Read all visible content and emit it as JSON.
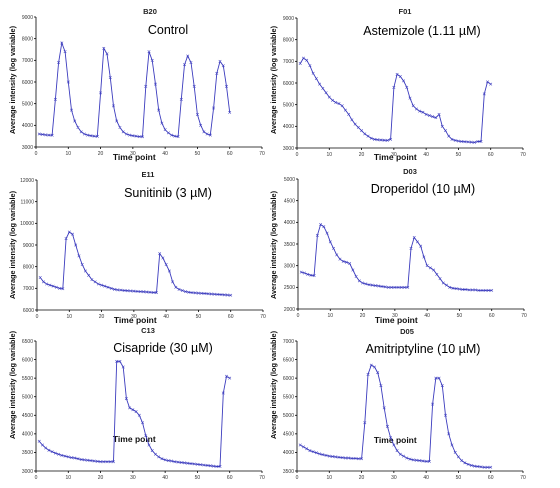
{
  "chart_data": [
    {
      "type": "line",
      "well": "B20",
      "title": "Control",
      "xlabel": "Time point",
      "ylabel": "Average intensity (log variable)",
      "xlim": [
        0,
        70
      ],
      "ylim": [
        3000,
        9000
      ],
      "xticks": [
        "0",
        "10",
        "20",
        "30",
        "40",
        "50",
        "60",
        "70"
      ],
      "yticks": [
        "3000",
        "4000",
        "5000",
        "6000",
        "7000",
        "8000",
        "9000"
      ],
      "x": [
        1,
        2,
        3,
        4,
        5,
        6,
        7,
        8,
        9,
        10,
        11,
        12,
        13,
        14,
        15,
        16,
        17,
        18,
        19,
        20,
        21,
        22,
        23,
        24,
        25,
        26,
        27,
        28,
        29,
        30,
        31,
        32,
        33,
        34,
        35,
        36,
        37,
        38,
        39,
        40,
        41,
        42,
        43,
        44,
        45,
        46,
        47,
        48,
        49,
        50,
        51,
        52,
        53,
        54,
        55,
        56,
        57,
        58,
        59,
        60
      ],
      "values": [
        3600,
        3580,
        3560,
        3550,
        3540,
        5200,
        6900,
        7800,
        7400,
        6000,
        4700,
        4200,
        3900,
        3700,
        3600,
        3550,
        3520,
        3500,
        3490,
        5500,
        7550,
        7300,
        6200,
        4900,
        4200,
        3900,
        3700,
        3600,
        3550,
        3520,
        3500,
        3480,
        3470,
        5800,
        7400,
        7000,
        5900,
        4700,
        4100,
        3800,
        3650,
        3550,
        3500,
        3480,
        5200,
        6800,
        7200,
        6900,
        5800,
        4500,
        4000,
        3700,
        3600,
        3550,
        4800,
        6400,
        6950,
        6750,
        5800,
        4600
      ]
    },
    {
      "type": "line",
      "well": "F01",
      "title": "Astemizole (1.11 µM)",
      "xlabel": "Time point",
      "ylabel": "Average intensity (log variable)",
      "xlim": [
        0,
        70
      ],
      "ylim": [
        3000,
        9000
      ],
      "xticks": [
        "0",
        "10",
        "20",
        "30",
        "40",
        "50",
        "60",
        "70"
      ],
      "yticks": [
        "3000",
        "4000",
        "5000",
        "6000",
        "7000",
        "8000",
        "9000"
      ],
      "x": [
        1,
        2,
        3,
        4,
        5,
        6,
        7,
        8,
        9,
        10,
        11,
        12,
        13,
        14,
        15,
        16,
        17,
        18,
        19,
        20,
        21,
        22,
        23,
        24,
        25,
        26,
        27,
        28,
        29,
        30,
        31,
        32,
        33,
        34,
        35,
        36,
        37,
        38,
        39,
        40,
        41,
        42,
        43,
        44,
        45,
        46,
        47,
        48,
        49,
        50,
        51,
        52,
        53,
        54,
        55,
        56,
        57,
        58,
        59,
        60
      ],
      "values": [
        6900,
        7150,
        7050,
        6800,
        6450,
        6200,
        5950,
        5750,
        5550,
        5350,
        5200,
        5100,
        5050,
        4950,
        4750,
        4550,
        4300,
        4100,
        3950,
        3800,
        3650,
        3550,
        3450,
        3400,
        3380,
        3370,
        3360,
        3350,
        3400,
        5800,
        6400,
        6300,
        6100,
        5800,
        5300,
        4950,
        4800,
        4700,
        4650,
        4550,
        4500,
        4450,
        4400,
        4550,
        4000,
        3800,
        3550,
        3400,
        3350,
        3320,
        3300,
        3290,
        3280,
        3270,
        3260,
        3300,
        3300,
        5500,
        6050,
        5950
      ]
    },
    {
      "type": "line",
      "well": "E11",
      "title": "Sunitinib (3 µM)",
      "xlabel": "Time point",
      "ylabel": "Average intensity (log variable)",
      "xlim": [
        0,
        70
      ],
      "ylim": [
        6000,
        12000
      ],
      "xticks": [
        "0",
        "10",
        "20",
        "30",
        "40",
        "50",
        "60",
        "70"
      ],
      "yticks": [
        "6000",
        "7000",
        "8000",
        "9000",
        "10000",
        "11000",
        "12000"
      ],
      "x": [
        1,
        2,
        3,
        4,
        5,
        6,
        7,
        8,
        9,
        10,
        11,
        12,
        13,
        14,
        15,
        16,
        17,
        18,
        19,
        20,
        21,
        22,
        23,
        24,
        25,
        26,
        27,
        28,
        29,
        30,
        31,
        32,
        33,
        34,
        35,
        36,
        37,
        38,
        39,
        40,
        41,
        42,
        43,
        44,
        45,
        46,
        47,
        48,
        49,
        50,
        51,
        52,
        53,
        54,
        55,
        56,
        57,
        58,
        59,
        60
      ],
      "values": [
        7500,
        7300,
        7200,
        7150,
        7100,
        7050,
        7000,
        6980,
        9300,
        9600,
        9500,
        9000,
        8500,
        8100,
        7800,
        7600,
        7400,
        7300,
        7200,
        7150,
        7100,
        7050,
        7000,
        6950,
        6930,
        6920,
        6900,
        6890,
        6880,
        6870,
        6860,
        6850,
        6840,
        6830,
        6820,
        6810,
        6800,
        8600,
        8400,
        8100,
        7800,
        7300,
        7050,
        6950,
        6900,
        6850,
        6820,
        6800,
        6790,
        6780,
        6770,
        6760,
        6750,
        6740,
        6730,
        6720,
        6710,
        6700,
        6690,
        6680
      ]
    },
    {
      "type": "line",
      "well": "D03",
      "title": "Droperidol (10 µM)",
      "xlabel": "Time point",
      "ylabel": "Average intensity (log variable)",
      "xlim": [
        0,
        70
      ],
      "ylim": [
        2000,
        5000
      ],
      "xticks": [
        "0",
        "10",
        "20",
        "30",
        "40",
        "50",
        "60",
        "70"
      ],
      "yticks": [
        "2000",
        "2500",
        "3000",
        "3500",
        "4000",
        "4500",
        "5000"
      ],
      "x": [
        1,
        2,
        3,
        4,
        5,
        6,
        7,
        8,
        9,
        10,
        11,
        12,
        13,
        14,
        15,
        16,
        17,
        18,
        19,
        20,
        21,
        22,
        23,
        24,
        25,
        26,
        27,
        28,
        29,
        30,
        31,
        32,
        33,
        34,
        35,
        36,
        37,
        38,
        39,
        40,
        41,
        42,
        43,
        44,
        45,
        46,
        47,
        48,
        49,
        50,
        51,
        52,
        53,
        54,
        55,
        56,
        57,
        58,
        59,
        60
      ],
      "values": [
        2850,
        2830,
        2800,
        2780,
        2770,
        3700,
        3950,
        3900,
        3750,
        3550,
        3400,
        3250,
        3150,
        3100,
        3080,
        3050,
        2900,
        2750,
        2650,
        2600,
        2580,
        2560,
        2550,
        2540,
        2530,
        2520,
        2510,
        2500,
        2500,
        2500,
        2500,
        2500,
        2500,
        2500,
        3400,
        3650,
        3550,
        3450,
        3200,
        3000,
        2950,
        2900,
        2800,
        2700,
        2600,
        2550,
        2500,
        2480,
        2470,
        2460,
        2450,
        2450,
        2440,
        2440,
        2440,
        2430,
        2430,
        2430,
        2430,
        2430
      ]
    },
    {
      "type": "line",
      "well": "C13",
      "title": "Cisapride (30 µM)",
      "xlabel": "Time point",
      "ylabel": "Average intensity (log variable)",
      "xlim": [
        0,
        70
      ],
      "ylim": [
        3000,
        6500
      ],
      "xticks": [
        "0",
        "10",
        "20",
        "30",
        "40",
        "50",
        "60",
        "70"
      ],
      "yticks": [
        "3000",
        "3500",
        "4000",
        "4500",
        "5000",
        "5500",
        "6000",
        "6500"
      ],
      "x": [
        1,
        2,
        3,
        4,
        5,
        6,
        7,
        8,
        9,
        10,
        11,
        12,
        13,
        14,
        15,
        16,
        17,
        18,
        19,
        20,
        21,
        22,
        23,
        24,
        25,
        26,
        27,
        28,
        29,
        30,
        31,
        32,
        33,
        34,
        35,
        36,
        37,
        38,
        39,
        40,
        41,
        42,
        43,
        44,
        45,
        46,
        47,
        48,
        49,
        50,
        51,
        52,
        53,
        54,
        55,
        56,
        57,
        58,
        59,
        60
      ],
      "values": [
        3800,
        3700,
        3620,
        3560,
        3520,
        3480,
        3450,
        3420,
        3400,
        3380,
        3360,
        3350,
        3330,
        3310,
        3300,
        3290,
        3280,
        3270,
        3260,
        3250,
        3250,
        3250,
        3250,
        3250,
        5950,
        5950,
        5800,
        4950,
        4700,
        4650,
        4600,
        4500,
        4300,
        3950,
        3700,
        3550,
        3450,
        3380,
        3330,
        3300,
        3280,
        3270,
        3250,
        3240,
        3230,
        3220,
        3210,
        3200,
        3190,
        3180,
        3170,
        3160,
        3150,
        3140,
        3130,
        3120,
        3120,
        5100,
        5550,
        5500
      ]
    },
    {
      "type": "line",
      "well": "D05",
      "title": "Amitriptyline (10 µM)",
      "xlabel": "Time point",
      "ylabel": "Average intensity (log variable)",
      "xlim": [
        0,
        70
      ],
      "ylim": [
        3500,
        7000
      ],
      "xticks": [
        "0",
        "10",
        "20",
        "30",
        "40",
        "50",
        "60",
        "70"
      ],
      "yticks": [
        "3500",
        "4000",
        "4500",
        "5000",
        "5500",
        "6000",
        "6500",
        "7000"
      ],
      "x": [
        1,
        2,
        3,
        4,
        5,
        6,
        7,
        8,
        9,
        10,
        11,
        12,
        13,
        14,
        15,
        16,
        17,
        18,
        19,
        20,
        21,
        22,
        23,
        24,
        25,
        26,
        27,
        28,
        29,
        30,
        31,
        32,
        33,
        34,
        35,
        36,
        37,
        38,
        39,
        40,
        41,
        42,
        43,
        44,
        45,
        46,
        47,
        48,
        49,
        50,
        51,
        52,
        53,
        54,
        55,
        56,
        57,
        58,
        59,
        60
      ],
      "values": [
        4200,
        4150,
        4100,
        4050,
        4020,
        3990,
        3960,
        3940,
        3920,
        3900,
        3890,
        3880,
        3870,
        3860,
        3850,
        3850,
        3840,
        3840,
        3830,
        3830,
        4800,
        6100,
        6350,
        6300,
        6150,
        5800,
        5200,
        4700,
        4400,
        4200,
        4050,
        3950,
        3900,
        3850,
        3820,
        3800,
        3790,
        3780,
        3770,
        3760,
        3760,
        5300,
        6000,
        6000,
        5800,
        5000,
        4500,
        4200,
        4000,
        3880,
        3780,
        3720,
        3680,
        3650,
        3630,
        3620,
        3610,
        3600,
        3600,
        3600
      ]
    }
  ]
}
